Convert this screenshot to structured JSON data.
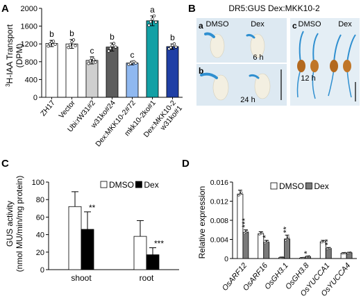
{
  "panels": {
    "A": "A",
    "B": "B",
    "C": "C",
    "D": "D"
  },
  "panel_b": {
    "title": "DR5:GUS Dex:MKK10-2",
    "sub_a": "a",
    "sub_b": "b",
    "sub_c": "c",
    "dmso": "DMSO",
    "dex": "Dex",
    "time_a": "6 h",
    "time_b": "24 h",
    "time_c": "12 h"
  },
  "colors": {
    "white_bar": "#ffffff",
    "light_gray": "#cfcfcf",
    "dark_gray": "#5d5d5d",
    "light_blue": "#8fb8f0",
    "teal": "#13a0a5",
    "navy": "#1f3fa5",
    "black_bar": "#000000",
    "gray_bar": "#7a7a7a",
    "gus_blue": "#2f8fd0"
  },
  "chart_data": [
    {
      "type": "bar",
      "panel": "A",
      "ylabel_sup": "3",
      "ylabel_main": "H-IAA Transport",
      "ylabel_unit": "(DPM)",
      "ylim": [
        0,
        2000
      ],
      "yticks": [
        "0",
        "400",
        "800",
        "1200",
        "1600",
        "2000"
      ],
      "categories": [
        [
          "ZH17"
        ],
        [
          "Vector"
        ],
        [
          "Ubi:rW31#2"
        ],
        [
          "w31ko#24"
        ],
        [
          "Dex:MKK10-2#72"
        ],
        [
          "mkk10-2ko#1"
        ],
        [
          "Dex:MKK10-2",
          "w31ko#1"
        ]
      ],
      "values": [
        1210,
        1200,
        830,
        1130,
        770,
        1720,
        1140
      ],
      "errors": [
        70,
        100,
        80,
        90,
        40,
        110,
        60
      ],
      "letters": [
        "b",
        "b",
        "c",
        "b",
        "c",
        "a",
        "b"
      ],
      "bar_colors": [
        "#ffffff",
        "#ffffff",
        "#cfcfcf",
        "#5d5d5d",
        "#8fb8f0",
        "#13a0a5",
        "#1f3fa5"
      ],
      "points": [
        [
          1150,
          1200,
          1240,
          1260,
          1190
        ],
        [
          1120,
          1180,
          1250,
          1290,
          1160
        ],
        [
          760,
          820,
          880,
          850,
          790
        ],
        [
          1040,
          1100,
          1160,
          1210,
          1130
        ],
        [
          740,
          760,
          790,
          800,
          770
        ],
        [
          1620,
          1700,
          1760,
          1830,
          1690
        ],
        [
          1090,
          1120,
          1170,
          1200,
          1130
        ]
      ]
    },
    {
      "type": "bar",
      "panel": "C",
      "ylabel_main": "GUS activity",
      "ylabel_unit": "(nmol MU/min/mg protein)",
      "ylim": [
        0,
        100
      ],
      "yticks": [
        "0",
        "20",
        "40",
        "60",
        "80",
        "100"
      ],
      "categories": [
        "shoot",
        "root"
      ],
      "series": [
        {
          "name": "DMSO",
          "values": [
            72,
            38
          ],
          "errors": [
            17,
            18
          ],
          "color": "#ffffff"
        },
        {
          "name": "Dex",
          "values": [
            46,
            17
          ],
          "errors": [
            20,
            8
          ],
          "color": "#000000"
        }
      ],
      "sig": [
        "**",
        "***"
      ],
      "legend": "top-right"
    },
    {
      "type": "bar",
      "panel": "D",
      "ylabel_main": "Relative expression",
      "ylim": [
        0,
        0.016
      ],
      "yticks": [
        "0",
        "0.004",
        "0.008",
        "0.012",
        "0.016"
      ],
      "categories": [
        "OsARF12",
        "OsARF16",
        "OsGH3.1",
        "OsGH3.8",
        "OsYUCCA1",
        "OsYUCCA4"
      ],
      "series": [
        {
          "name": "DMSO",
          "values": [
            0.0135,
            0.0052,
            0.0002,
            0.0001,
            0.0035,
            0.0011
          ],
          "errors": [
            0.0008,
            0.0004,
            5e-05,
            5e-05,
            0.0003,
            0.0001
          ],
          "color": "#ffffff"
        },
        {
          "name": "Dex",
          "values": [
            0.0055,
            0.0034,
            0.0041,
            0.0004,
            0.0021,
            0.0012
          ],
          "errors": [
            0.0005,
            0.0004,
            0.0008,
            0.0001,
            0.0002,
            0.0001
          ],
          "color": "#7a7a7a"
        }
      ],
      "sig": [
        "***",
        "*",
        "**",
        "*",
        "**",
        ""
      ],
      "legend": "top-right"
    }
  ]
}
